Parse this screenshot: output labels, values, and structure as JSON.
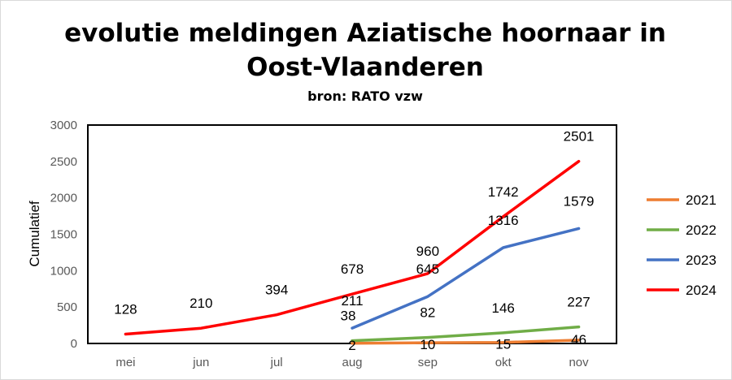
{
  "chart_data": {
    "type": "line",
    "title_line1": "evolutie meldingen Aziatische hoornaar in",
    "title_line2": "Oost-Vlaanderen",
    "subtitle": "bron: RATO vzw",
    "ylabel": "Cumulatief",
    "xlabel": "",
    "ylim": [
      0,
      3000
    ],
    "yticks": [
      "0",
      "500",
      "1000",
      "1500",
      "2000",
      "2500",
      "3000"
    ],
    "categories": [
      "mei",
      "jun",
      "jul",
      "aug",
      "sep",
      "okt",
      "nov"
    ],
    "series": [
      {
        "name": "2021",
        "color": "#ed7d31",
        "values": [
          null,
          null,
          null,
          2,
          10,
          15,
          46
        ]
      },
      {
        "name": "2022",
        "color": "#70ad47",
        "values": [
          null,
          null,
          null,
          38,
          82,
          146,
          227
        ]
      },
      {
        "name": "2023",
        "color": "#4472c4",
        "values": [
          null,
          null,
          null,
          211,
          645,
          1316,
          1579
        ]
      },
      {
        "name": "2024",
        "color": "#ff0000",
        "values": [
          128,
          210,
          394,
          678,
          960,
          1742,
          2501
        ]
      }
    ],
    "legend_position": "right",
    "grid": false
  }
}
